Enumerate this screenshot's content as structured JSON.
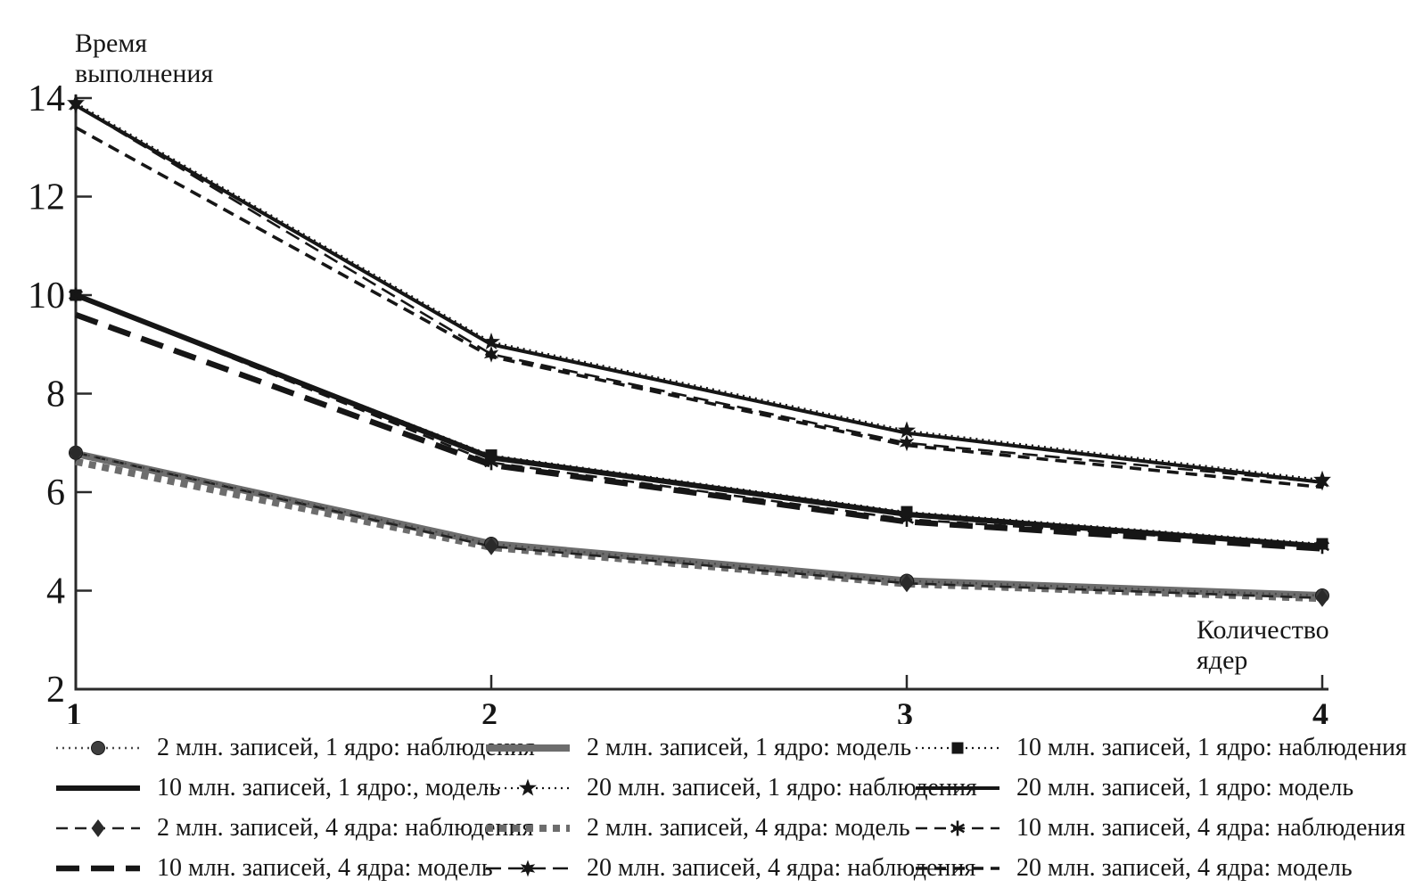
{
  "chart_data": {
    "type": "line",
    "title": "",
    "ylabel": "Время выполнения",
    "xlabel": "Количество ядер",
    "x": [
      1,
      2,
      3,
      4
    ],
    "xlim": [
      1,
      4
    ],
    "ylim": [
      2,
      14
    ],
    "xticks": [
      "1",
      "2",
      "3",
      "4"
    ],
    "yticks": [
      "2",
      "4",
      "6",
      "8",
      "10",
      "12",
      "14"
    ],
    "grid": false,
    "legend_position": "bottom",
    "axis_color": "#2a2a2a",
    "series": [
      {
        "name": "2 млн. записей, 1 ядро: наблюдения",
        "values": [
          6.8,
          4.95,
          4.2,
          3.9
        ],
        "style": "dot",
        "marker": "circle",
        "color": "#4a4a4a",
        "width": 2.4
      },
      {
        "name": "2 млн. записей, 1 ядро: модель",
        "values": [
          6.78,
          4.95,
          4.2,
          3.9
        ],
        "style": "solid",
        "marker": "none",
        "color": "#6d6d6d",
        "width": 8
      },
      {
        "name": "10 млн. записей, 1 ядро: наблюдения",
        "values": [
          10.0,
          6.75,
          5.6,
          4.95
        ],
        "style": "dot",
        "marker": "square",
        "color": "#161616",
        "width": 2.2
      },
      {
        "name": "10 млн. записей, 1 ядро:, модель",
        "values": [
          10.0,
          6.7,
          5.55,
          4.9
        ],
        "style": "solid",
        "marker": "none",
        "color": "#161616",
        "width": 6
      },
      {
        "name": "20 млн. записей, 1 ядро: наблюдения",
        "values": [
          13.9,
          9.05,
          7.25,
          6.25
        ],
        "style": "dot",
        "marker": "star5",
        "color": "#161616",
        "width": 2.2
      },
      {
        "name": "20 млн. записей, 1 ядро: модель",
        "values": [
          13.85,
          9.0,
          7.2,
          6.2
        ],
        "style": "solid",
        "marker": "none",
        "color": "#161616",
        "width": 4
      },
      {
        "name": "2 млн. записей, 4 ядра: наблюдения",
        "values": [
          6.8,
          4.9,
          4.15,
          3.85
        ],
        "style": "dash",
        "marker": "diamond",
        "color": "#222222",
        "width": 2.6
      },
      {
        "name": "2 млн. записей, 4 ядра: модель",
        "values": [
          6.62,
          4.88,
          4.14,
          3.84
        ],
        "style": "sqdot",
        "marker": "none",
        "color": "#6d6d6d",
        "width": 8
      },
      {
        "name": "10 млн. записей, 4 ядра: наблюдения",
        "values": [
          10.0,
          6.6,
          5.45,
          4.9
        ],
        "style": "dash",
        "marker": "asterisk",
        "color": "#161616",
        "width": 2.6
      },
      {
        "name": "10 млн. записей, 4 ядра: модель",
        "values": [
          9.6,
          6.55,
          5.4,
          4.85
        ],
        "style": "longdash",
        "marker": "none",
        "color": "#161616",
        "width": 6.5
      },
      {
        "name": "20 млн. записей, 4 ядра: наблюдения",
        "values": [
          13.85,
          8.8,
          7.0,
          6.2
        ],
        "style": "dashdot",
        "marker": "star6",
        "color": "#161616",
        "width": 2.6
      },
      {
        "name": "20 млн. записей, 4 ядра: модель",
        "values": [
          13.4,
          8.75,
          6.95,
          6.1
        ],
        "style": "dash",
        "marker": "none",
        "color": "#161616",
        "width": 3.6
      }
    ]
  }
}
